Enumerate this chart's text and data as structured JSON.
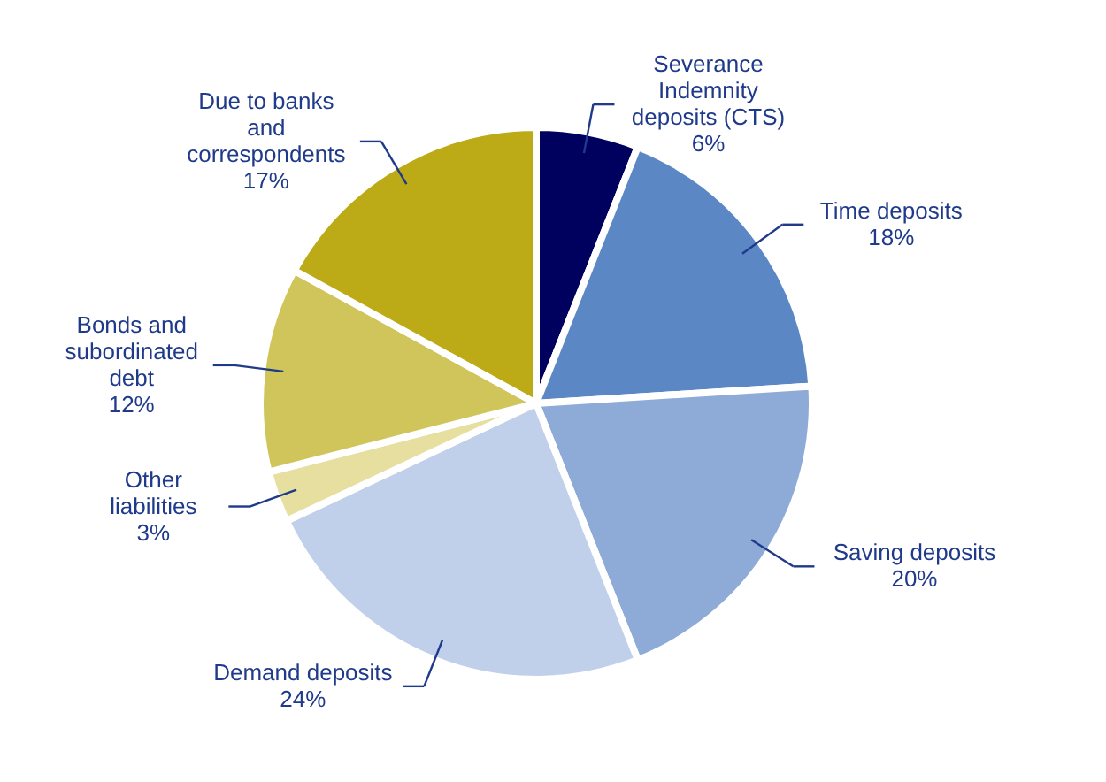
{
  "chart_data": {
    "type": "pie",
    "categories": [
      "Severance Indemnity deposits (CTS)",
      "Time deposits",
      "Saving deposits",
      "Demand deposits",
      "Other liabilities",
      "Bonds and subordinated debt",
      "Due to banks and correspondents"
    ],
    "values": [
      6,
      18,
      20,
      24,
      3,
      12,
      17
    ],
    "colors": [
      "#00005e",
      "#5b87c5",
      "#8eaad6",
      "#c1d0ea",
      "#e6dfa0",
      "#d0c55a",
      "#bcab17"
    ],
    "value_labels": [
      "6%",
      "18%",
      "20%",
      "24%",
      "3%",
      "12%",
      "17%"
    ]
  }
}
